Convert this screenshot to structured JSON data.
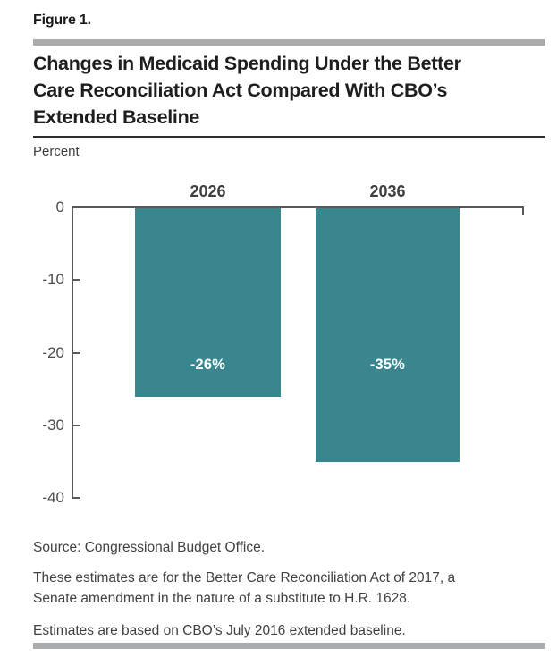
{
  "figure": {
    "label": "Figure 1.",
    "title_lines": [
      "Changes in Medicaid Spending Under the Better",
      "Care Reconciliation Act Compared With CBO’s",
      "Extended Baseline"
    ],
    "axis_unit_label": "Percent"
  },
  "chart_data": {
    "type": "bar",
    "categories": [
      "2026",
      "2036"
    ],
    "values": [
      -26,
      -35
    ],
    "bar_labels": [
      "-26%",
      "-35%"
    ],
    "title": "Changes in Medicaid Spending Under the Better Care Reconciliation Act Compared With CBO’s Extended Baseline",
    "xlabel": "",
    "ylabel": "Percent",
    "ylim": [
      -40,
      0
    ],
    "yticks": [
      0,
      -10,
      -20,
      -30,
      -40
    ],
    "ytick_labels": [
      "0",
      "-10",
      "-20",
      "-30",
      "-40"
    ],
    "grid": false,
    "legend": "none",
    "bar_color": "#39868F",
    "bar_label_color": "#FFFFFF"
  },
  "notes": {
    "source": "Source: Congressional Budget Office.",
    "act_lines": [
      "These estimates are for the Better Care Reconciliation Act of 2017, a",
      "Senate amendment in the nature of a substitute to H.R. 1628."
    ],
    "baseline": "Estimates are based on CBO’s July 2016 extended baseline."
  },
  "colors": {
    "bar": "#39868F",
    "rule_gray": "#A9ABAD",
    "axis": "#58595B",
    "title_text": "#1D1E20",
    "body_text": "#414042"
  }
}
